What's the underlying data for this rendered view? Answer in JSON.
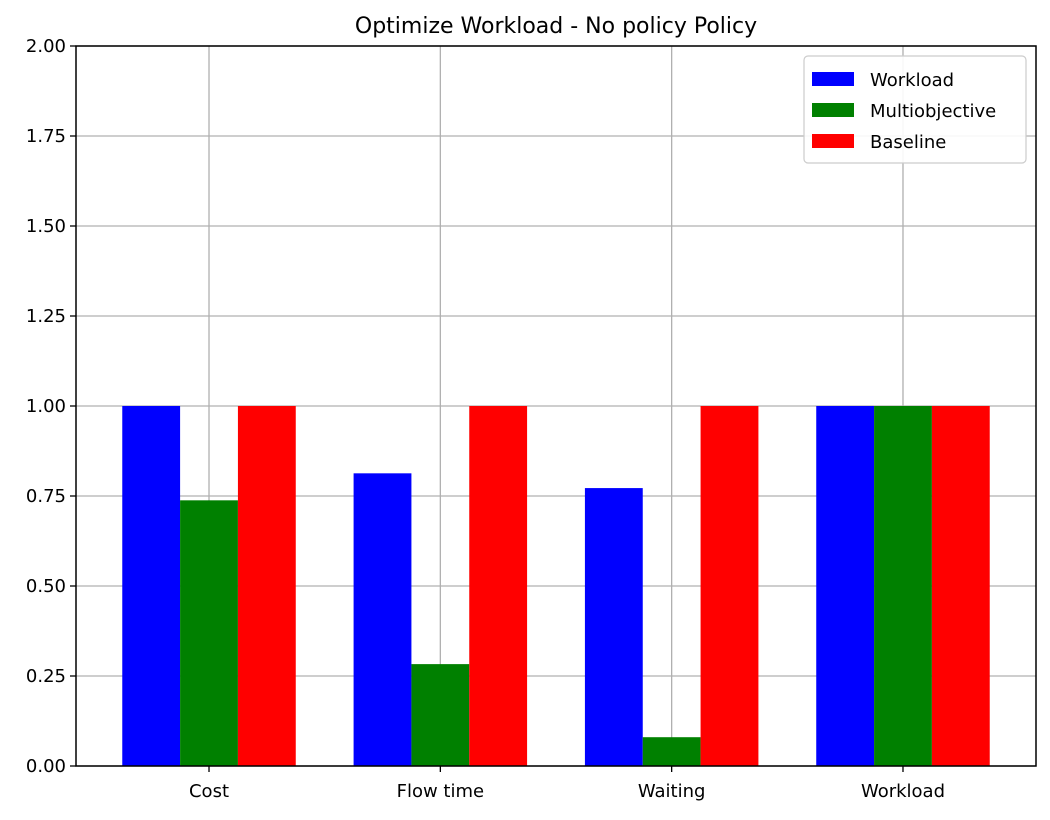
{
  "chart_data": {
    "type": "bar",
    "title": "Optimize Workload - No policy Policy",
    "xlabel": "",
    "ylabel": "",
    "categories": [
      "Cost",
      "Flow time",
      "Waiting",
      "Workload"
    ],
    "series": [
      {
        "name": "Workload",
        "color": "#0000ff",
        "values": [
          1.0,
          0.813,
          0.772,
          1.0
        ]
      },
      {
        "name": "Multiobjective",
        "color": "#008000",
        "values": [
          0.738,
          0.283,
          0.08,
          1.0
        ]
      },
      {
        "name": "Baseline",
        "color": "#ff0000",
        "values": [
          1.0,
          1.0,
          1.0,
          1.0
        ]
      }
    ],
    "ylim": [
      0,
      2.0
    ],
    "yticks": [
      "0.00",
      "0.25",
      "0.50",
      "0.75",
      "1.00",
      "1.25",
      "1.50",
      "1.75",
      "2.00"
    ],
    "grid": true,
    "legend_position": "top-right"
  }
}
